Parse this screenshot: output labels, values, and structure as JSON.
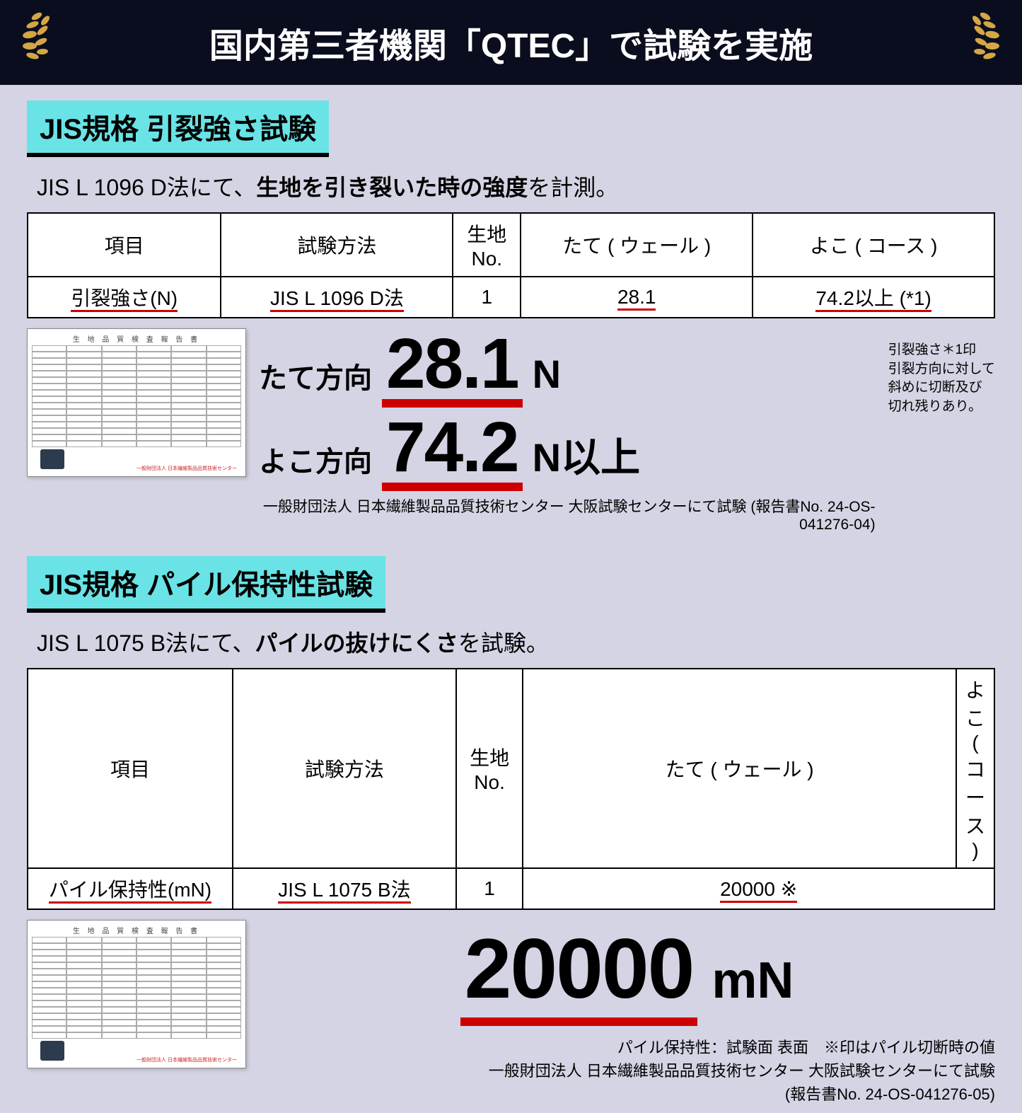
{
  "header": {
    "title": "国内第三者機関「QTEC」で試験を実施",
    "bg_color": "#0a0d1e",
    "text_color": "#ffffff",
    "laurel_color": "#d4a645"
  },
  "section1": {
    "tag": "JIS規格 引裂強さ試験",
    "tag_bg": "#69e3e6",
    "desc_prefix": "JIS L 1096 D法にて、",
    "desc_bold": "生地を引き裂いた時の強度",
    "desc_suffix": "を計測。",
    "table": {
      "headers": [
        "項目",
        "試験方法",
        "生地\nNo.",
        "たて ( ウェール )",
        "よこ ( コース )"
      ],
      "row": [
        "引裂強さ(N)",
        "JIS L 1096 D法",
        "1",
        "28.1",
        "74.2以上 (*1)"
      ],
      "col_widths": [
        "20%",
        "24%",
        "7%",
        "24%",
        "25%"
      ]
    },
    "values": [
      {
        "label": "たて方向",
        "num": "28.1",
        "unit": "N"
      },
      {
        "label": "よこ方向",
        "num": "74.2",
        "unit": "N以上"
      }
    ],
    "side_note": "引裂強さ＊1印\n引裂方向に対して\n斜めに切断及び\n切れ残りあり。",
    "credit": "一般財団法人 日本繊維製品品質技術センター 大阪試験センターにて試験 (報告書No. 24-OS-041276-04)",
    "report_title": "生 地 品 質 検 査 報 告 書"
  },
  "section2": {
    "tag": "JIS規格 パイル保持性試験",
    "tag_bg": "#69e3e6",
    "desc_prefix": "JIS L 1075 B法にて、",
    "desc_bold": "パイルの抜けにくさ",
    "desc_suffix": "を試験。",
    "table": {
      "headers": [
        "項目",
        "試験方法",
        "生地\nNo.",
        "たて ( ウェール )",
        "よこ ( コース )"
      ],
      "row": [
        "パイル保持性(mN)",
        "JIS L 1075 B法",
        "1",
        "20000 ※"
      ],
      "col_widths": [
        "22%",
        "24%",
        "7%",
        "47%"
      ]
    },
    "value": {
      "num": "20000",
      "unit": "mN"
    },
    "foot_note1": "パイル保持性：試験面 表面　※印はパイル切断時の値",
    "foot_note2": "一般財団法人 日本繊維製品品質技術センター 大阪試験センターにて試験",
    "foot_note3": "(報告書No. 24-OS-041276-05)",
    "report_title": "生 地 品 質 検 査 報 告 書"
  },
  "style": {
    "underline_color": "#c00",
    "page_bg": "#d4d4e4"
  }
}
